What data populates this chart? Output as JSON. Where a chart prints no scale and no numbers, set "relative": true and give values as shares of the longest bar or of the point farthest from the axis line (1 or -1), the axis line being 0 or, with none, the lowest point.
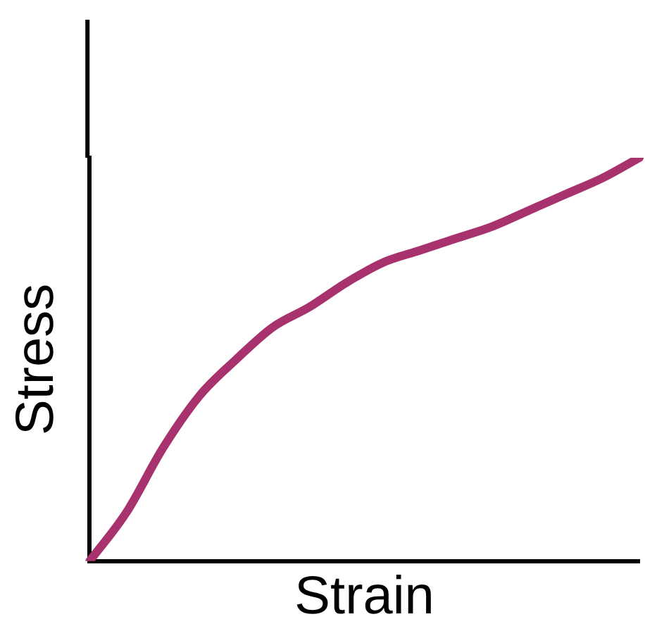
{
  "chart_data": {
    "type": "line",
    "relative": true,
    "xlabel": "Strain",
    "ylabel": "Stress",
    "categories": [
      null,
      null,
      null,
      null,
      null,
      null,
      null,
      null,
      null,
      null,
      null,
      null,
      null,
      null,
      null,
      null
    ],
    "series": [
      {
        "color": "#a8326e",
        "values": [
          0,
          0.12,
          0.28,
          0.41,
          0.5,
          0.58,
          0.63,
          0.69,
          0.74,
          0.77,
          0.8,
          0.83,
          0.87,
          0.91,
          0.95,
          1
        ]
      }
    ],
    "grid": false,
    "legend": false,
    "marker": "none",
    "line_style": "solid"
  }
}
